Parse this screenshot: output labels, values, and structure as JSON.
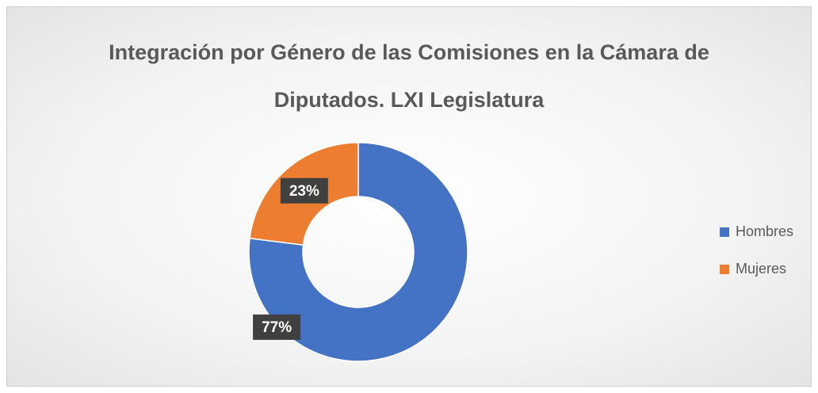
{
  "chart_data": {
    "type": "donut",
    "title": "Integración por Género de las Comisiones en la Cámara de Diputados. LXI Legislatura",
    "categories": [
      "Hombres",
      "Mujeres"
    ],
    "values": [
      77,
      23
    ],
    "value_labels": [
      "77%",
      "23%"
    ],
    "colors": [
      "#4472c4",
      "#ed7d31"
    ],
    "legend": "right"
  }
}
